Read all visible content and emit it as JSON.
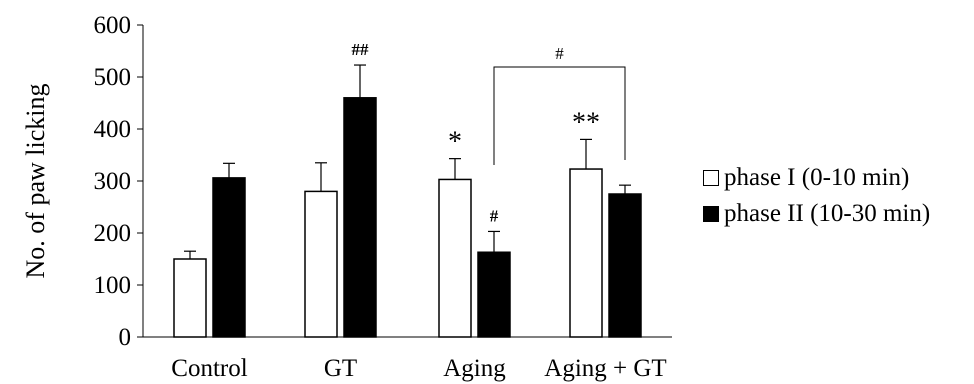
{
  "chart_data": {
    "type": "bar",
    "title": "",
    "xlabel": "",
    "ylabel": "No. of paw licking",
    "ylim": [
      0,
      600
    ],
    "yticks": [
      0,
      100,
      200,
      300,
      400,
      500,
      600
    ],
    "categories": [
      "Control",
      "GT",
      "Aging",
      "Aging + GT"
    ],
    "series": [
      {
        "name": "phase I (0-10 min)",
        "color": "#ffffff",
        "values": [
          150,
          280,
          303,
          323
        ],
        "errors": [
          15,
          55,
          40,
          57
        ],
        "annotations": [
          "",
          "",
          "*",
          "**"
        ]
      },
      {
        "name": "phase II (10-30 min)",
        "color": "#000000",
        "values": [
          306,
          460,
          163,
          275
        ],
        "errors": [
          28,
          63,
          40,
          17
        ],
        "annotations": [
          "",
          "##",
          "#",
          ""
        ]
      }
    ],
    "bracket": {
      "from": "Aging phase II",
      "to": "Aging + GT phase II",
      "label": "#"
    },
    "legend_position": "right"
  }
}
